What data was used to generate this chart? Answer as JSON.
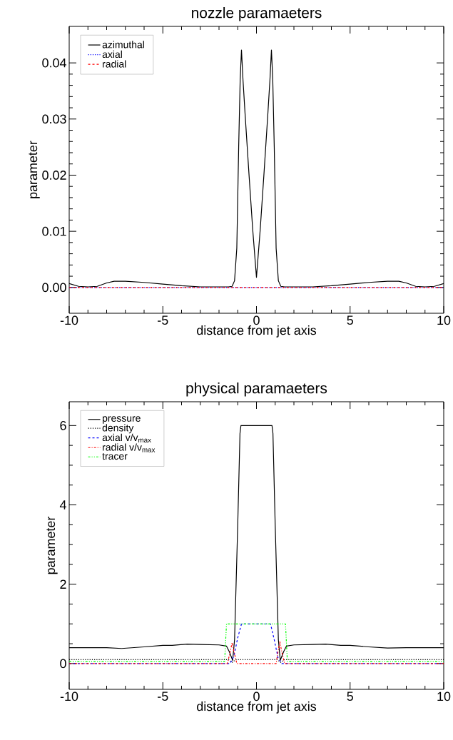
{
  "chart_data": [
    {
      "type": "line",
      "title": "nozzle paramaeters",
      "xlabel": "distance from jet axis",
      "ylabel": "parameter",
      "xlim": [
        -10,
        10
      ],
      "ylim": [
        -0.0046,
        0.0465
      ],
      "xticks": [
        -10,
        -5,
        0,
        5,
        10
      ],
      "yticks": [
        {
          "value": 0,
          "label": "0.00"
        },
        {
          "value": 0.01,
          "label": "0.01"
        },
        {
          "value": 0.02,
          "label": "0.02"
        },
        {
          "value": 0.03,
          "label": "0.03"
        },
        {
          "value": 0.04,
          "label": "0.04"
        }
      ],
      "legend": "top left",
      "series": [
        {
          "name": "azimuthal",
          "color": "#000000",
          "line_style": "solid",
          "x": [
            -10,
            -9.5,
            -9,
            -8.5,
            -8,
            -7.6,
            -7,
            -6,
            -5,
            -4,
            -3,
            -2,
            -1.5,
            -1.3,
            -1.17,
            -1.05,
            -0.95,
            -0.87,
            -0.8,
            -0.72,
            -0.6,
            -0.4,
            -0.2,
            0,
            0.2,
            0.4,
            0.6,
            0.72,
            0.8,
            0.87,
            0.95,
            1.05,
            1.17,
            1.3,
            1.5,
            2,
            3,
            4,
            5,
            6,
            7,
            7.6,
            8,
            8.5,
            9,
            9.5,
            10
          ],
          "values": [
            0.0007,
            0.0002,
            0.0001,
            0.0002,
            0.0008,
            0.0011,
            0.0011,
            0.0009,
            0.0006,
            0.0003,
            0.0001,
            0.0001,
            0.0001,
            0.0002,
            0.0012,
            0.007,
            0.025,
            0.037,
            0.0423,
            0.037,
            0.0305,
            0.0202,
            0.0103,
            0.0018,
            0.0103,
            0.0202,
            0.0305,
            0.037,
            0.0423,
            0.037,
            0.025,
            0.007,
            0.0012,
            0.0002,
            0.0001,
            0.0001,
            0.0001,
            0.0003,
            0.0006,
            0.0009,
            0.0011,
            0.0011,
            0.0008,
            0.0002,
            0.0001,
            0.0002,
            0.0007
          ]
        },
        {
          "name": "axial",
          "color": "#0000ff",
          "line_style": "dotted",
          "x": [
            -10,
            10
          ],
          "values": [
            0,
            0
          ]
        },
        {
          "name": "radial",
          "color": "#ff0000",
          "line_style": "dashed",
          "x": [
            -10,
            10
          ],
          "values": [
            0,
            0
          ]
        }
      ]
    },
    {
      "type": "line",
      "title": "physical paramaeters",
      "xlabel": "distance from jet axis",
      "ylabel": "parameter",
      "xlim": [
        -10,
        10
      ],
      "ylim": [
        -0.65,
        6.6
      ],
      "xticks": [
        -10,
        -5,
        0,
        5,
        10
      ],
      "yticks": [
        0,
        2,
        4,
        6
      ],
      "legend": "top left",
      "series": [
        {
          "name": "pressure",
          "color": "#000000",
          "line_style": "solid",
          "x": [
            -10,
            -8,
            -7.2,
            -6,
            -5,
            -4.5,
            -3.7,
            -3,
            -2,
            -1.6,
            -1.45,
            -1.27,
            -1.17,
            -1.0,
            -0.88,
            -0.83,
            0,
            0.83,
            0.88,
            1.0,
            1.17,
            1.27,
            1.45,
            1.6,
            2,
            3,
            3.7,
            4.5,
            5,
            6,
            7,
            8,
            10
          ],
          "values": [
            0.4,
            0.4,
            0.38,
            0.42,
            0.46,
            0.46,
            0.49,
            0.48,
            0.47,
            0.44,
            0.3,
            0.08,
            0.6,
            3.5,
            5.8,
            6.0,
            6.0,
            6.0,
            5.8,
            3.5,
            0.6,
            0.08,
            0.3,
            0.44,
            0.47,
            0.48,
            0.49,
            0.46,
            0.46,
            0.42,
            0.39,
            0.4,
            0.4
          ]
        },
        {
          "name": "density",
          "color": "#000000",
          "line_style": "dotted",
          "x": [
            -10,
            -1.5,
            -1.3,
            -1.1,
            1.1,
            1.3,
            1.5,
            10
          ],
          "values": [
            0.1,
            0.1,
            0.03,
            0.1,
            0.1,
            0.03,
            0.1,
            0.1
          ]
        },
        {
          "name": "axial v/v$_{max}$",
          "color": "#0000ff",
          "line_style": "dashed",
          "x": [
            -10,
            -1.4,
            -1.2,
            -1.0,
            -0.8,
            0.75,
            0.95,
            1.15,
            1.35,
            10
          ],
          "values": [
            0,
            0,
            0.2,
            0.65,
            1.0,
            1.0,
            0.6,
            0.15,
            0,
            0
          ]
        },
        {
          "name": "radial v/v$_{max}$",
          "color": "#ff0000",
          "line_style": "dashdot",
          "x": [
            -10,
            -1.55,
            -1.4,
            -1.3,
            -1.2,
            -1.05,
            1.05,
            1.15,
            1.25,
            1.35,
            1.5,
            10
          ],
          "values": [
            0,
            0,
            0.3,
            0.53,
            0.3,
            0,
            0,
            0.3,
            0.55,
            0.3,
            0,
            0
          ]
        },
        {
          "name": "tracer",
          "color": "#00ff00",
          "line_style": "dashdotdot",
          "x": [
            -10,
            -1.7,
            -1.6,
            1.55,
            1.65,
            10
          ],
          "values": [
            0.05,
            0.05,
            1.0,
            1.0,
            0.05,
            0.05
          ]
        }
      ]
    }
  ]
}
